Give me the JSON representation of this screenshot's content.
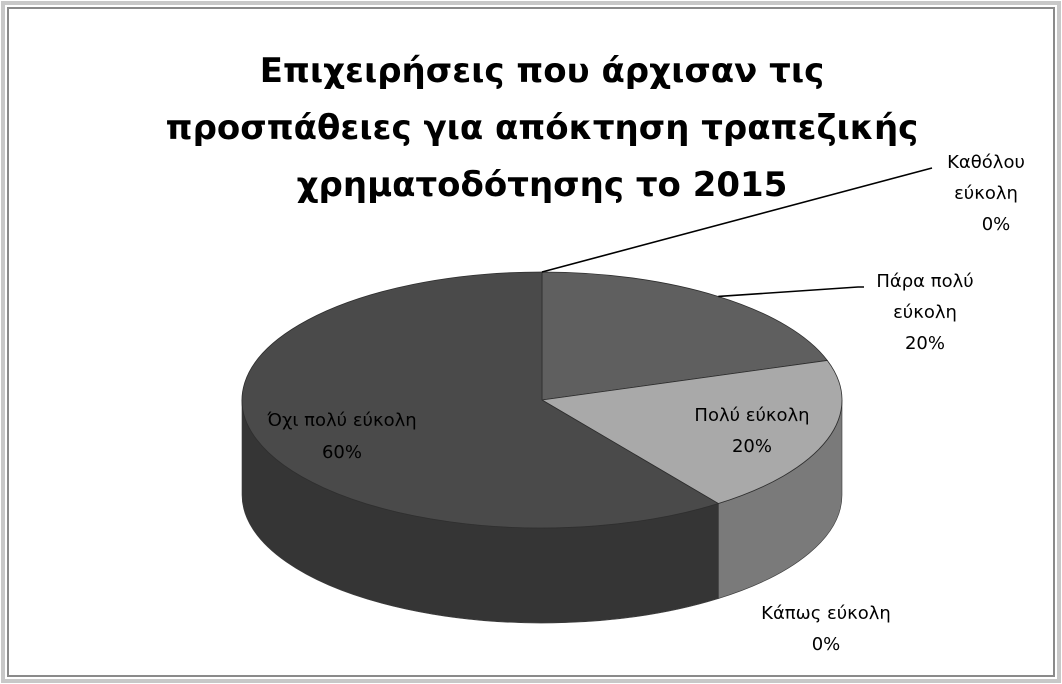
{
  "chart_data": {
    "type": "pie",
    "title_lines": [
      "Επιχειρήσεις που άρχισαν τις",
      "προσπάθειες για απόκτηση τραπεζικής",
      "χρηματοδότησης το 2015"
    ],
    "slices": [
      {
        "label_lines": [
          "Καθόλου",
          "εύκολη"
        ],
        "value": 0,
        "percent_label": "0%",
        "color": "#9a9a9a"
      },
      {
        "label_lines": [
          "Πάρα πολύ",
          "εύκολη"
        ],
        "value": 20,
        "percent_label": "20%",
        "color": "#5f5f5f"
      },
      {
        "label_lines": [
          "Πολύ εύκολη"
        ],
        "value": 20,
        "percent_label": "20%",
        "color": "#a9a9a9"
      },
      {
        "label_lines": [
          "Κάπως εύκολη"
        ],
        "value": 0,
        "percent_label": "0%",
        "color": "#7a7a7a"
      },
      {
        "label_lines": [
          "Όχι πολύ εύκολη"
        ],
        "value": 60,
        "percent_label": "60%",
        "color": "#4a4a4a"
      }
    ],
    "style": "3d-pie",
    "legend": "none",
    "colors": {
      "background": "#ffffff",
      "border_light": "#c8c8c8",
      "border_dark": "#7f7f7f"
    }
  }
}
